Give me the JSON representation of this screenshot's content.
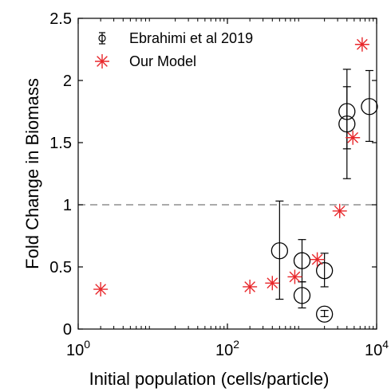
{
  "chart_data": {
    "type": "scatter",
    "xlabel": "Initial population (cells/particle)",
    "ylabel": "Fold Change in Biomass",
    "x_scale": "log",
    "xlim": [
      1,
      10000
    ],
    "ylim": [
      0,
      2.5
    ],
    "x_ticks": [
      {
        "value": 1,
        "base": "10",
        "exp": "0"
      },
      {
        "value": 100,
        "base": "10",
        "exp": "2"
      },
      {
        "value": 10000,
        "base": "10",
        "exp": "4"
      }
    ],
    "y_ticks": [
      "0",
      "0.5",
      "1",
      "1.5",
      "2",
      "2.5"
    ],
    "grid": false,
    "legend_position": "top-left",
    "reference_line": {
      "y": 1,
      "style": "dashed",
      "color": "#777777"
    },
    "series": [
      {
        "name": "Ebrahimi et al 2019",
        "marker": "circle",
        "color": "#000000",
        "points": [
          {
            "x": 500,
            "y": 0.63,
            "err_low": 0.24,
            "err_high": 1.03
          },
          {
            "x": 1000,
            "y": 0.55,
            "err_low": 0.38,
            "err_high": 0.72
          },
          {
            "x": 1000,
            "y": 0.27,
            "err_low": 0.17,
            "err_high": 0.38
          },
          {
            "x": 2000,
            "y": 0.47,
            "err_low": 0.34,
            "err_high": 0.61
          },
          {
            "x": 2000,
            "y": 0.12,
            "err_low": 0.1,
            "err_high": 0.15
          },
          {
            "x": 4000,
            "y": 1.75,
            "err_low": 1.45,
            "err_high": 2.09
          },
          {
            "x": 4000,
            "y": 1.65,
            "err_low": 1.21,
            "err_high": 1.95
          },
          {
            "x": 8000,
            "y": 1.79,
            "err_low": 1.51,
            "err_high": 2.08
          }
        ]
      },
      {
        "name": "Our Model",
        "marker": "asterisk",
        "color": "#e8262a",
        "points": [
          {
            "x": 2,
            "y": 0.32
          },
          {
            "x": 200,
            "y": 0.34
          },
          {
            "x": 400,
            "y": 0.37
          },
          {
            "x": 800,
            "y": 0.42
          },
          {
            "x": 1600,
            "y": 0.56
          },
          {
            "x": 3200,
            "y": 0.95
          },
          {
            "x": 4800,
            "y": 1.54
          },
          {
            "x": 6400,
            "y": 2.29
          }
        ]
      }
    ]
  }
}
